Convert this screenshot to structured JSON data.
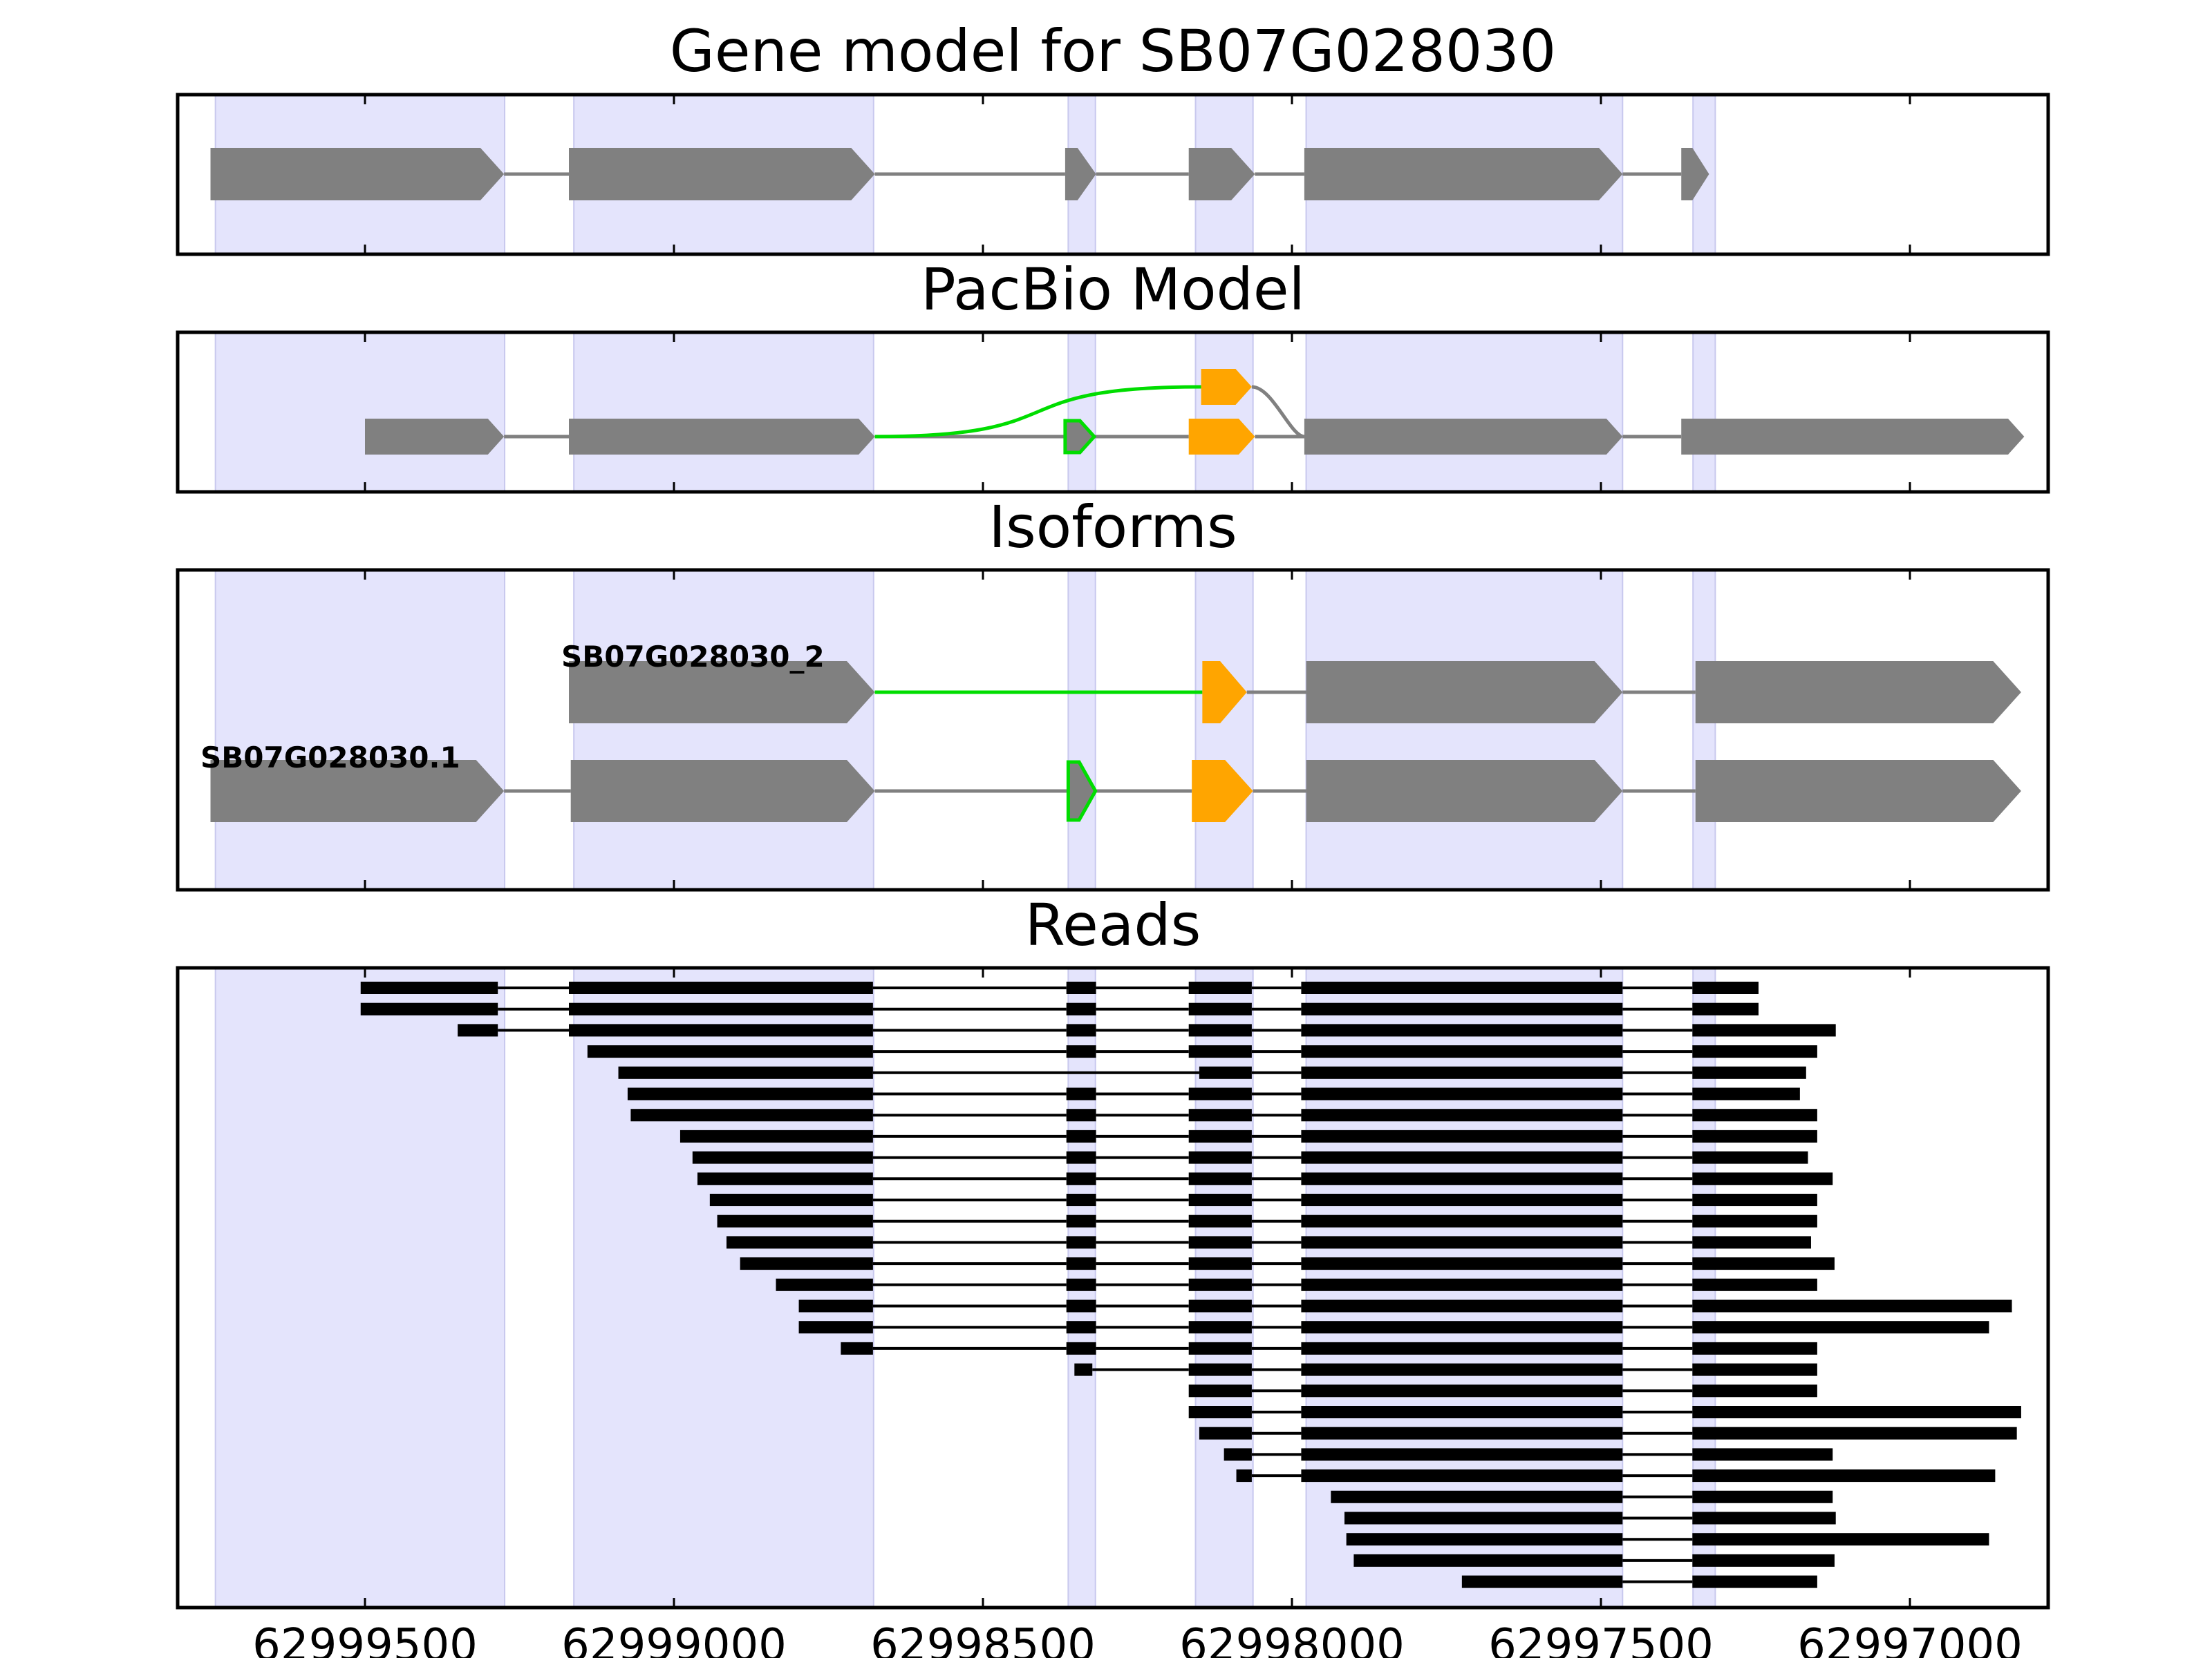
{
  "chart_data": {
    "type": "gene_model_browser",
    "x_reversed": true,
    "x_range": [
      62999785,
      62996770
    ],
    "x_ticks": [
      62999500,
      62999000,
      62998500,
      62998000,
      62997500,
      62997000
    ],
    "x_tick_labels": [
      "62999500",
      "62999000",
      "62998500",
      "62998000",
      "62997500",
      "62997000"
    ],
    "exon_highlights": [
      [
        62999742,
        62999274
      ],
      [
        62999162,
        62998677
      ],
      [
        62998362,
        62998318
      ],
      [
        62998156,
        62998063
      ],
      [
        62997977,
        62997465
      ],
      [
        62997351,
        62997315
      ]
    ],
    "colors": {
      "highlight": "#e4e4fc",
      "exon": "#808080",
      "intron": "#808080",
      "read": "#000000",
      "alt_exon": "#ffa500",
      "alt_path": "#00dd00"
    },
    "panels": [
      {
        "key": "gene_model",
        "title": "Gene model for SB07G028030",
        "exons": [
          [
            62999750,
            62999275
          ],
          [
            62999170,
            62998675
          ],
          [
            62998367,
            62998317
          ],
          [
            62998167,
            62998060
          ],
          [
            62997980,
            62997465
          ],
          [
            62997370,
            62997325
          ]
        ]
      },
      {
        "key": "pacbio",
        "title": "PacBio Model",
        "main_exons": [
          [
            62999500,
            62999275
          ],
          [
            62999170,
            62998675
          ],
          [
            62997980,
            62997465
          ],
          [
            62997370,
            62996815
          ]
        ],
        "alt_exons_main": [
          [
            62998167,
            62998060
          ]
        ],
        "alt_exons_upper": [
          [
            62998147,
            62998065
          ]
        ],
        "green_exons": [
          [
            62998367,
            62998320
          ]
        ],
        "green_path": [
          62998675,
          62998147
        ]
      },
      {
        "key": "isoforms",
        "title": "Isoforms",
        "isoforms": [
          {
            "label": "SB07G028030_2",
            "exons": [
              [
                62999170,
                62998675
              ],
              [
                62998145,
                62998073
              ],
              [
                62997977,
                62997465
              ],
              [
                62997347,
                62996820
              ]
            ],
            "alt_exons": [
              [
                62998145,
                62998073
              ]
            ],
            "green_path": [
              62998675,
              62998145
            ]
          },
          {
            "label": "SB07G028030.1",
            "exons": [
              [
                62999750,
                62999275
              ],
              [
                62999167,
                62998675
              ],
              [
                62998362,
                62998318
              ],
              [
                62998162,
                62998063
              ],
              [
                62997977,
                62997465
              ],
              [
                62997347,
                62996820
              ]
            ],
            "alt_exons": [
              [
                62998162,
                62998063
              ]
            ],
            "green_exons": [
              [
                62998362,
                62998318
              ]
            ]
          }
        ]
      },
      {
        "key": "reads",
        "title": "Reads",
        "reads": [
          [
            [
              62999507,
              62999285
            ],
            [
              62999170,
              62998678
            ],
            [
              62998365,
              62998317
            ],
            [
              62998167,
              62998065
            ],
            [
              62997985,
              62997465
            ],
            [
              62997352,
              62997245
            ]
          ],
          [
            [
              62999507,
              62999285
            ],
            [
              62999170,
              62998678
            ],
            [
              62998365,
              62998317
            ],
            [
              62998167,
              62998065
            ],
            [
              62997985,
              62997465
            ],
            [
              62997352,
              62997245
            ]
          ],
          [
            [
              62999350,
              62999285
            ],
            [
              62999170,
              62998678
            ],
            [
              62998365,
              62998317
            ],
            [
              62998167,
              62998065
            ],
            [
              62997985,
              62997465
            ],
            [
              62997352,
              62997120
            ]
          ],
          [
            [
              62999140,
              62998678
            ],
            [
              62998365,
              62998317
            ],
            [
              62998167,
              62998065
            ],
            [
              62997985,
              62997465
            ],
            [
              62997352,
              62997150
            ]
          ],
          [
            [
              62999090,
              62998678
            ],
            [
              62998150,
              62998065
            ],
            [
              62997985,
              62997465
            ],
            [
              62997352,
              62997168
            ]
          ],
          [
            [
              62999075,
              62998678
            ],
            [
              62998365,
              62998317
            ],
            [
              62998167,
              62998065
            ],
            [
              62997985,
              62997465
            ],
            [
              62997352,
              62997178
            ]
          ],
          [
            [
              62999070,
              62998678
            ],
            [
              62998365,
              62998317
            ],
            [
              62998167,
              62998065
            ],
            [
              62997985,
              62997465
            ],
            [
              62997352,
              62997150
            ]
          ],
          [
            [
              62998990,
              62998678
            ],
            [
              62998365,
              62998317
            ],
            [
              62998167,
              62998065
            ],
            [
              62997985,
              62997465
            ],
            [
              62997352,
              62997150
            ]
          ],
          [
            [
              62998970,
              62998678
            ],
            [
              62998365,
              62998317
            ],
            [
              62998167,
              62998065
            ],
            [
              62997985,
              62997465
            ],
            [
              62997352,
              62997165
            ]
          ],
          [
            [
              62998962,
              62998678
            ],
            [
              62998365,
              62998317
            ],
            [
              62998167,
              62998065
            ],
            [
              62997985,
              62997465
            ],
            [
              62997352,
              62997125
            ]
          ],
          [
            [
              62998942,
              62998678
            ],
            [
              62998365,
              62998317
            ],
            [
              62998167,
              62998065
            ],
            [
              62997985,
              62997465
            ],
            [
              62997352,
              62997150
            ]
          ],
          [
            [
              62998930,
              62998678
            ],
            [
              62998365,
              62998317
            ],
            [
              62998167,
              62998065
            ],
            [
              62997985,
              62997465
            ],
            [
              62997352,
              62997150
            ]
          ],
          [
            [
              62998915,
              62998678
            ],
            [
              62998365,
              62998317
            ],
            [
              62998167,
              62998065
            ],
            [
              62997985,
              62997465
            ],
            [
              62997352,
              62997160
            ]
          ],
          [
            [
              62998893,
              62998678
            ],
            [
              62998365,
              62998317
            ],
            [
              62998167,
              62998065
            ],
            [
              62997985,
              62997465
            ],
            [
              62997352,
              62997122
            ]
          ],
          [
            [
              62998835,
              62998678
            ],
            [
              62998365,
              62998317
            ],
            [
              62998167,
              62998065
            ],
            [
              62997985,
              62997465
            ],
            [
              62997352,
              62997150
            ]
          ],
          [
            [
              62998798,
              62998678
            ],
            [
              62998365,
              62998317
            ],
            [
              62998167,
              62998065
            ],
            [
              62997985,
              62997465
            ],
            [
              62997352,
              62996835
            ]
          ],
          [
            [
              62998798,
              62998678
            ],
            [
              62998365,
              62998317
            ],
            [
              62998167,
              62998065
            ],
            [
              62997985,
              62997465
            ],
            [
              62997352,
              62996872
            ]
          ],
          [
            [
              62998730,
              62998678
            ],
            [
              62998365,
              62998317
            ],
            [
              62998167,
              62998065
            ],
            [
              62997985,
              62997465
            ],
            [
              62997352,
              62997150
            ]
          ],
          [
            [
              62998352,
              62998323
            ],
            [
              62998167,
              62998065
            ],
            [
              62997985,
              62997465
            ],
            [
              62997352,
              62997150
            ]
          ],
          [
            [
              62998167,
              62998065
            ],
            [
              62997985,
              62997465
            ],
            [
              62997352,
              62997150
            ]
          ],
          [
            [
              62998167,
              62998065
            ],
            [
              62997985,
              62997465
            ],
            [
              62997352,
              62996820
            ]
          ],
          [
            [
              62998150,
              62998065
            ],
            [
              62997985,
              62997465
            ],
            [
              62997352,
              62996827
            ]
          ],
          [
            [
              62998110,
              62998065
            ],
            [
              62997985,
              62997465
            ],
            [
              62997352,
              62997125
            ]
          ],
          [
            [
              62998090,
              62998065
            ],
            [
              62997985,
              62997465
            ],
            [
              62997352,
              62996862
            ]
          ],
          [
            [
              62997937,
              62997465
            ],
            [
              62997352,
              62997125
            ]
          ],
          [
            [
              62997915,
              62997465
            ],
            [
              62997352,
              62997120
            ]
          ],
          [
            [
              62997912,
              62997465
            ],
            [
              62997352,
              62996872
            ]
          ],
          [
            [
              62997900,
              62997465
            ],
            [
              62997352,
              62997122
            ]
          ],
          [
            [
              62997725,
              62997465
            ],
            [
              62997352,
              62997150
            ]
          ]
        ]
      }
    ]
  }
}
